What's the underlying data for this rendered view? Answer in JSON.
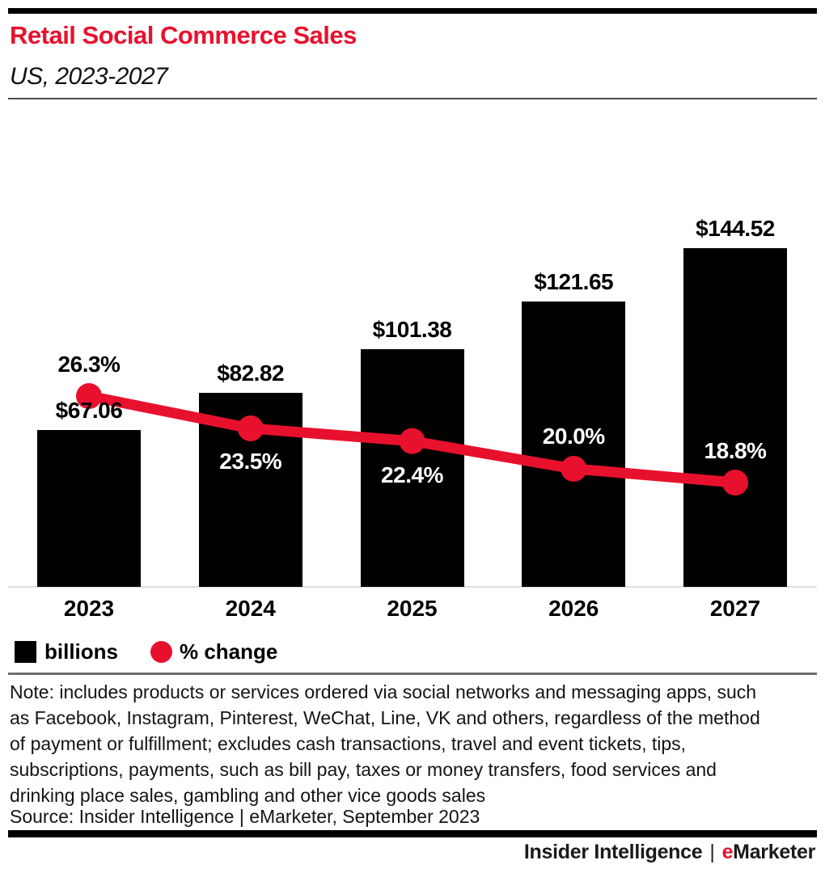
{
  "header": {
    "title": "Retail Social Commerce Sales",
    "subtitle": "US, 2023-2027"
  },
  "colors": {
    "brand_red": "#e8112d",
    "bar_black": "#000000",
    "white_label": "#ffffff"
  },
  "chart_data": {
    "type": "bar",
    "title": "Retail Social Commerce Sales",
    "subtitle": "US, 2023-2027",
    "categories": [
      "2023",
      "2024",
      "2025",
      "2026",
      "2027"
    ],
    "series": [
      {
        "name": "billions",
        "type": "bar",
        "unit": "US$ billions",
        "values": [
          67.06,
          82.82,
          101.38,
          121.65,
          144.52
        ],
        "labels": [
          "$67.06",
          "$82.82",
          "$101.38",
          "$121.65",
          "$144.52"
        ],
        "color": "#000000"
      },
      {
        "name": "% change",
        "type": "line",
        "unit": "percent",
        "values": [
          26.3,
          23.5,
          22.4,
          20.0,
          18.8
        ],
        "labels": [
          "26.3%",
          "23.5%",
          "22.4%",
          "20.0%",
          "18.8%"
        ],
        "color": "#e8112d"
      }
    ],
    "legend": [
      {
        "label": "billions",
        "swatch": "square",
        "color": "#000000"
      },
      {
        "label": "% change",
        "swatch": "circle",
        "color": "#e8112d"
      }
    ],
    "layout": {
      "grid": false,
      "y_axis_visible": false,
      "legend_position": "bottom-left",
      "pct_label_offsets": [
        -39,
        41,
        42,
        -40,
        -39
      ],
      "pct_label_colors": [
        "#000000",
        "#ffffff",
        "#ffffff",
        "#ffffff",
        "#ffffff"
      ]
    }
  },
  "note": {
    "lines": [
      "Note: includes products or services ordered via social networks and messaging apps, such",
      "as Facebook, Instagram, Pinterest, WeChat, Line, VK and others, regardless of the method",
      "of payment or fulfillment; excludes cash transactions, travel and event tickets, tips,",
      "subscriptions, payments, such as bill pay, taxes or money transfers, food services and",
      "drinking place sales, gambling and other vice goods sales"
    ],
    "source": "Source: Insider Intelligence | eMarketer, September 2023"
  },
  "footer": {
    "brand_left": "Insider Intelligence",
    "separator": "|",
    "brand_e": "e",
    "brand_rest": "Marketer"
  }
}
